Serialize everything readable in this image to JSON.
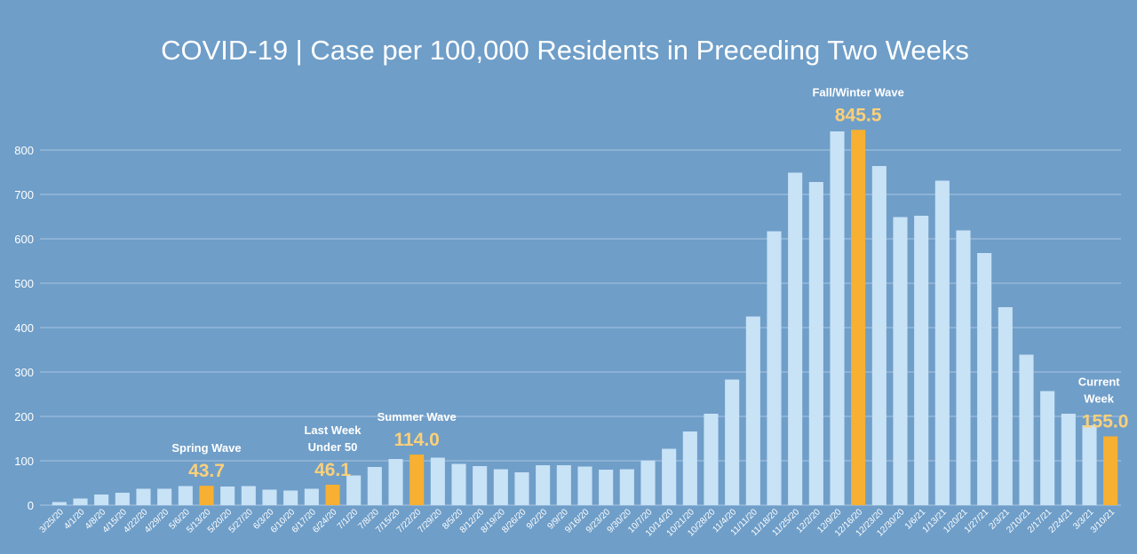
{
  "chart_data": {
    "type": "bar",
    "title": "COVID-19 | Case per 100,000 Residents in Preceding Two Weeks",
    "xlabel": "",
    "ylabel": "",
    "ylim": [
      0,
      900
    ],
    "yticks": [
      0,
      100,
      200,
      300,
      400,
      500,
      600,
      700,
      800
    ],
    "grid": true,
    "colors": {
      "background": "#6f9ec8",
      "bar": "#c8e2f6",
      "highlight": "#f7b032",
      "grid": "#a9c6e2",
      "annotation_value": "#fbd07a",
      "text": "#ffffff"
    },
    "categories": [
      "3/25/20",
      "4/1/20",
      "4/8/20",
      "4/15/20",
      "4/22/20",
      "4/29/20",
      "5/6/20",
      "5/13/20",
      "5/20/20",
      "5/27/20",
      "6/3/20",
      "6/10/20",
      "6/17/20",
      "6/24/20",
      "7/1/20",
      "7/8/20",
      "7/15/20",
      "7/22/20",
      "7/29/20",
      "8/5/20",
      "8/12/20",
      "8/19/20",
      "8/26/20",
      "9/2/20",
      "9/9/20",
      "9/16/20",
      "9/23/20",
      "9/30/20",
      "10/7/20",
      "10/14/20",
      "10/21/20",
      "10/28/20",
      "11/4/20",
      "11/11/20",
      "11/18/20",
      "11/25/20",
      "12/2/20",
      "12/9/20",
      "12/16/20",
      "12/23/20",
      "12/30/20",
      "1/6/21",
      "1/13/21",
      "1/20/21",
      "1/27/21",
      "2/3/21",
      "2/10/21",
      "2/17/21",
      "2/24/21",
      "3/3/21",
      "3/10/21"
    ],
    "values": [
      7,
      15,
      24,
      28,
      37,
      37,
      43,
      43.7,
      42,
      43,
      35,
      33,
      37,
      46.1,
      67,
      86,
      104,
      114.0,
      107,
      93,
      88,
      81,
      74,
      90,
      90,
      87,
      80,
      81,
      101,
      127,
      166,
      206,
      283,
      425,
      617,
      749,
      728,
      842,
      845.5,
      764,
      649,
      652,
      731,
      619,
      568,
      446,
      339,
      257,
      206,
      180,
      155.0
    ],
    "highlighted_categories": [
      "5/13/20",
      "6/24/20",
      "7/22/20",
      "12/16/20",
      "3/10/21"
    ],
    "annotations": [
      {
        "category": "5/13/20",
        "lines": [
          "Spring Wave"
        ],
        "value_label": "43.7"
      },
      {
        "category": "6/24/20",
        "lines": [
          "Last Week",
          "Under 50"
        ],
        "value_label": "46.1"
      },
      {
        "category": "7/22/20",
        "lines": [
          "Summer Wave"
        ],
        "value_label": "114.0"
      },
      {
        "category": "12/16/20",
        "lines": [
          "Fall/Winter Wave"
        ],
        "value_label": "845.5"
      },
      {
        "category": "3/10/21",
        "lines": [
          "Current",
          "Week"
        ],
        "value_label": "155.0"
      }
    ]
  }
}
